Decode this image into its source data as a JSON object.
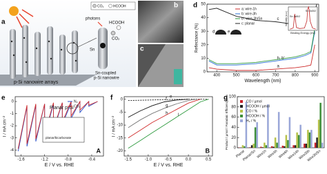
{
  "figure_a": {
    "label": "a",
    "legend": [
      "CO₂",
      "HCOOH"
    ],
    "photons": "photons",
    "product": "HCOOH",
    "reactant": "CO₂",
    "metal": "Sn",
    "array_caption": "p-Si nanowire arrays",
    "wire_caption": [
      "Sn-coupled",
      "p-Si nanowire"
    ]
  },
  "figure_b": {
    "label": "b"
  },
  "figure_c": {
    "label": "c"
  },
  "chart_data": [
    {
      "type": "line",
      "label": "d",
      "xlabel": "Wavelength (nm)",
      "ylabel": "Reflectance (%)",
      "xlim": [
        350,
        920
      ],
      "ylim": [
        0,
        50
      ],
      "xticks": [
        400,
        500,
        600,
        700,
        800,
        900
      ],
      "yticks": [
        0,
        10,
        20,
        30,
        40,
        50
      ],
      "legend_corner": "upper center",
      "droplet_labels": [
        "d",
        "e"
      ],
      "series": [
        {
          "name": "a: wire-1h",
          "tag": "a",
          "color": "#cc2a2a",
          "x": [
            360,
            400,
            500,
            600,
            700,
            800,
            850,
            880,
            900
          ],
          "values": [
            3,
            2,
            1,
            1,
            2,
            3,
            4,
            5,
            20
          ]
        },
        {
          "name": "b: wire-3h",
          "tag": "b, b'",
          "color": "#2a6fd6",
          "x": [
            360,
            400,
            500,
            600,
            700,
            800,
            850,
            880,
            900
          ],
          "values": [
            8,
            5,
            5,
            6,
            8,
            10,
            12,
            14,
            30
          ]
        },
        {
          "name": "b': wire-3h/Sn",
          "color": "#2e9a3e",
          "x": [
            360,
            400,
            500,
            600,
            700,
            800,
            850,
            880,
            900
          ],
          "values": [
            9,
            6,
            6,
            7,
            9,
            11,
            13,
            15,
            32
          ]
        },
        {
          "name": "c: planar",
          "tag": "c",
          "color": "#222222",
          "x": [
            360,
            400,
            450,
            500,
            600,
            700,
            800,
            850,
            880,
            900,
            910
          ],
          "values": [
            46,
            47,
            44,
            41,
            38,
            37,
            35,
            35,
            36,
            45,
            50
          ]
        }
      ],
      "inset": {
        "xlabel": "Binding Energy (eV)",
        "ylabel": "Intensity (a.u.)",
        "peaks": [
          "Sn 3d5/2",
          "Sn 3d3/2"
        ],
        "color": "#c0282a",
        "xlim": [
          499,
          481
        ],
        "ylim": [
          0,
          1
        ],
        "x": [
          498,
          496,
          495.5,
          495,
          494.5,
          494,
          492,
          489,
          487.5,
          487,
          486.5,
          486,
          485.5,
          484,
          482
        ],
        "values": [
          0.05,
          0.1,
          0.4,
          0.7,
          0.4,
          0.12,
          0.08,
          0.1,
          0.4,
          0.9,
          1,
          0.85,
          0.4,
          0.1,
          0.05
        ]
      }
    },
    {
      "type": "line",
      "label": "e",
      "title": "Planar p-Si",
      "tag": "A",
      "xlabel": "E / V vs. RHE",
      "ylabel": "I / mA cm⁻²",
      "xlim": [
        -1.7,
        -0.2
      ],
      "ylim": [
        -4.5,
        0.4
      ],
      "xticks": [
        -1.6,
        -1.2,
        -0.8,
        -0.4
      ],
      "yticks": [
        0,
        -1,
        -2,
        -3,
        -4
      ],
      "legend_corner": "upper right",
      "inset_text": "planar/bicarbonate",
      "series": [
        {
          "name": "N₂",
          "color": "#2a4fc8",
          "x": [
            -0.3,
            -0.45,
            -0.45,
            -0.6,
            -0.6,
            -0.75,
            -0.75,
            -0.9,
            -0.9,
            -1.05,
            -1.05,
            -1.2,
            -1.2,
            -1.35,
            -1.35,
            -1.5,
            -1.5,
            -1.65
          ],
          "values": [
            0,
            -0.4,
            0,
            -0.9,
            0,
            -1.4,
            -0.1,
            -1.9,
            -0.1,
            -2.4,
            -0.2,
            -2.9,
            -0.2,
            -3.3,
            -0.3,
            -3.7,
            -0.4,
            -4.1
          ]
        },
        {
          "name": "CO₂",
          "color": "#d02a2a",
          "x": [
            -0.3,
            -0.45,
            -0.45,
            -0.6,
            -0.6,
            -0.75,
            -0.75,
            -0.9,
            -0.9,
            -1.05,
            -1.05,
            -1.2,
            -1.2,
            -1.35,
            -1.35,
            -1.5,
            -1.5,
            -1.65
          ],
          "values": [
            0,
            -0.3,
            0,
            -0.7,
            0,
            -1.2,
            0,
            -1.7,
            -0.1,
            -2.2,
            -0.1,
            -2.7,
            -0.2,
            -3.1,
            -0.2,
            -3.5,
            -0.3,
            -3.9
          ]
        }
      ]
    },
    {
      "type": "line",
      "label": "f",
      "tag": "B",
      "xlabel": "E / V vs. RHE",
      "ylabel": "I / mA cm⁻²",
      "xlim": [
        -1.6,
        0.6
      ],
      "ylim": [
        -22,
        1
      ],
      "xticks": [
        -1.5,
        {
          "value": -1,
          "label": "-1.0"
        },
        -0.5,
        {
          "value": 0,
          "label": "0.0"
        },
        0.5
      ],
      "yticks": [
        0,
        -5,
        -10,
        -15,
        -20
      ],
      "series": [
        {
          "tag": "e",
          "color": "#111111",
          "dash": true,
          "x": [
            -1.5,
            -1.0,
            -0.5,
            0.0,
            0.5
          ],
          "values": [
            -0.5,
            -0.3,
            -0.1,
            0,
            0
          ]
        },
        {
          "tag": "f",
          "color": "#111111",
          "x": [
            -1.5,
            -1.2,
            -0.9,
            -0.6,
            -0.3,
            0.0
          ],
          "values": [
            -7,
            -4.5,
            -2.5,
            -1,
            -0.3,
            0
          ]
        },
        {
          "tag": "g",
          "color": "#777777",
          "x": [
            -1.5,
            -1.2,
            -0.9,
            -0.6,
            -0.3,
            0.0,
            0.2
          ],
          "values": [
            -11,
            -8,
            -5.5,
            -3.5,
            -1.8,
            -0.5,
            0
          ]
        },
        {
          "tag": "h",
          "color": "#d02a2a",
          "x": [
            -1.5,
            -1.2,
            -0.9,
            -0.6,
            -0.3,
            0.0,
            0.3
          ],
          "values": [
            -15,
            -12,
            -9,
            -6.5,
            -4,
            -1.5,
            0
          ]
        },
        {
          "tag": "i",
          "color": "#2e9a3e",
          "x": [
            -1.5,
            -1.2,
            -0.9,
            -0.6,
            -0.3,
            0.0,
            0.3,
            0.5
          ],
          "values": [
            -19,
            -16,
            -13,
            -10,
            -7,
            -4,
            -1,
            0
          ]
        }
      ]
    },
    {
      "type": "bar",
      "label": "g",
      "ylabel": "Product / µmol / Faradaic Efficiency / %",
      "ylim": [
        0,
        100
      ],
      "yticks": [
        0,
        20,
        40,
        60,
        80,
        100
      ],
      "legend_corner": "upper left",
      "categories": [
        "Planar",
        "Planar/Sn",
        "Wire1h",
        "Wire3h",
        "Wire6h",
        "Wire14h",
        "Wire30h",
        "Wire3h/Sn"
      ],
      "series": [
        {
          "name": "CO / µmol",
          "color": "#c8202a",
          "values": [
            0.5,
            1,
            2,
            3,
            4,
            5,
            8,
            10
          ]
        },
        {
          "name": "HCOOH / µmol",
          "color": "#222222",
          "values": [
            0.2,
            5,
            1,
            2,
            3,
            5,
            8,
            20
          ]
        },
        {
          "name": "CO / %",
          "color": "#b7c24a",
          "values": [
            5,
            8,
            10,
            20,
            25,
            30,
            35,
            55
          ]
        },
        {
          "name": "HCOOH / %",
          "color": "#3f8f3a",
          "values": [
            3,
            40,
            5,
            10,
            15,
            25,
            30,
            88
          ]
        },
        {
          "name": "H₂ / %",
          "color": "#9aa7d8",
          "values": [
            90,
            50,
            85,
            70,
            60,
            45,
            35,
            10
          ]
        }
      ]
    }
  ]
}
